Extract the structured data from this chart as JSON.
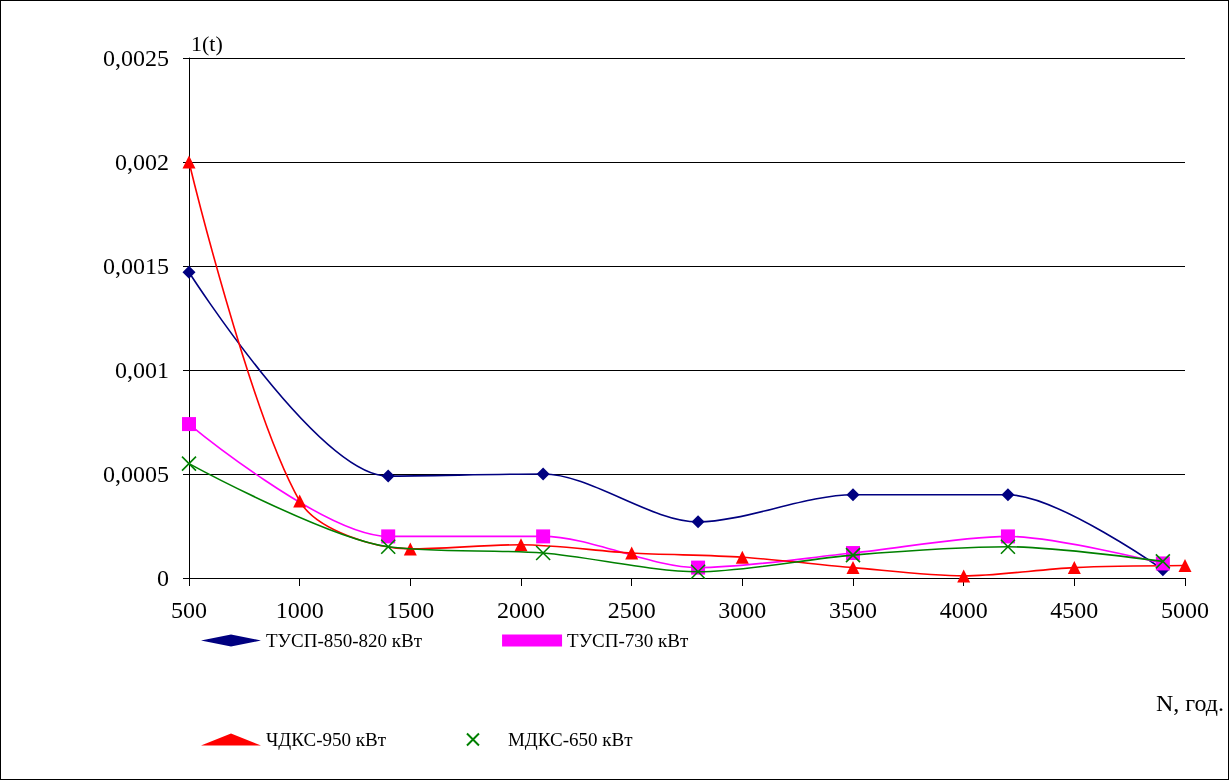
{
  "chart_data": {
    "type": "line",
    "ylabel": "1(t)",
    "xlabel": "N, год.",
    "xlim": [
      500,
      5000
    ],
    "xticks": [
      500,
      1000,
      1500,
      2000,
      2500,
      3000,
      3500,
      4000,
      4500,
      5000
    ],
    "ylim": [
      0,
      0.0025
    ],
    "yticks": [
      {
        "value": 0,
        "label": "0"
      },
      {
        "value": 0.0005,
        "label": "0,0005"
      },
      {
        "value": 0.001,
        "label": "0,001"
      },
      {
        "value": 0.0015,
        "label": "0,0015"
      },
      {
        "value": 0.002,
        "label": "0,002"
      },
      {
        "value": 0.0025,
        "label": "0,0025"
      }
    ],
    "grid": "y",
    "legend": "bottom",
    "line_style": "solid",
    "series": [
      {
        "name": "ТУСП-850-820 кВт",
        "color": "#000080",
        "marker": "diamond",
        "x": [
          500,
          1400,
          2100,
          2800,
          3500,
          4200,
          4900
        ],
        "values": [
          0.00147,
          0.00049,
          0.0005,
          0.00027,
          0.0004,
          0.0004,
          4e-05
        ]
      },
      {
        "name": "ТУСП-730 кВт",
        "color": "#ff00ff",
        "marker": "square",
        "x": [
          500,
          1400,
          2100,
          2800,
          3500,
          4200,
          4900
        ],
        "values": [
          0.00074,
          0.0002,
          0.0002,
          5e-05,
          0.00012,
          0.0002,
          7e-05
        ]
      },
      {
        "name": "ЧДКС-950 кВт",
        "color": "#ff0000",
        "marker": "triangle",
        "x": [
          500,
          1000,
          1500,
          2000,
          2500,
          3000,
          3500,
          4000,
          4500,
          5000
        ],
        "values": [
          0.002,
          0.00037,
          0.00014,
          0.00016,
          0.00012,
          0.0001,
          5e-05,
          1e-05,
          5e-05,
          6e-05
        ]
      },
      {
        "name": "МДКС-650 кВт",
        "color": "#008000",
        "marker": "cross",
        "x": [
          500,
          1400,
          2100,
          2800,
          3500,
          4200,
          4900
        ],
        "values": [
          0.00055,
          0.00015,
          0.00012,
          3e-05,
          0.00011,
          0.00015,
          8e-05
        ]
      }
    ]
  }
}
